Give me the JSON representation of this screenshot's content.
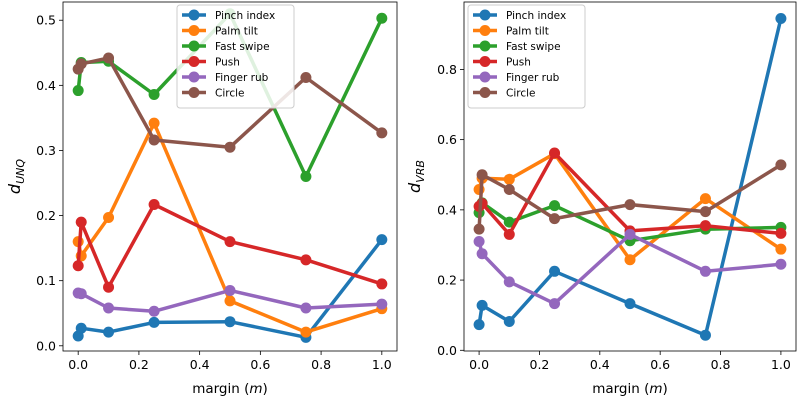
{
  "chart_data": [
    {
      "type": "line",
      "ylabel": "d_UNQ",
      "ylabel_main": "d",
      "ylabel_sub": "UNQ",
      "xlabel": "margin (m)",
      "xlabel_prefix": "margin (",
      "xlabel_var": "m",
      "xlabel_suffix": ")",
      "xlim": [
        -0.05,
        1.05
      ],
      "ylim": [
        -0.008,
        0.528
      ],
      "xticks": [
        0.0,
        0.2,
        0.4,
        0.6,
        0.8,
        1.0
      ],
      "xtick_labels": [
        "0.0",
        "0.2",
        "0.4",
        "0.6",
        "0.8",
        "1.0"
      ],
      "yticks": [
        0.0,
        0.1,
        0.2,
        0.3,
        0.4,
        0.5
      ],
      "ytick_labels": [
        "0.0",
        "0.1",
        "0.2",
        "0.3",
        "0.4",
        "0.5"
      ],
      "legend_position": "top-center",
      "x": [
        0.0,
        0.01,
        0.1,
        0.25,
        0.5,
        0.75,
        1.0
      ],
      "series": [
        {
          "name": "Pinch index",
          "color": "#1f77b4",
          "values": [
            0.015,
            0.027,
            0.021,
            0.036,
            0.037,
            0.013,
            0.163
          ]
        },
        {
          "name": "Palm tilt",
          "color": "#ff7f0e",
          "values": [
            0.16,
            0.138,
            0.197,
            0.342,
            0.069,
            0.021,
            0.057
          ]
        },
        {
          "name": "Fast swipe",
          "color": "#2ca02c",
          "values": [
            0.392,
            0.435,
            0.437,
            0.386,
            0.51,
            0.26,
            0.503
          ]
        },
        {
          "name": "Push",
          "color": "#d62728",
          "values": [
            0.123,
            0.19,
            0.09,
            0.217,
            0.16,
            0.132,
            0.095
          ]
        },
        {
          "name": "Finger rub",
          "color": "#9467bd",
          "values": [
            0.081,
            0.08,
            0.058,
            0.053,
            0.085,
            0.058,
            0.064
          ]
        },
        {
          "name": "Circle",
          "color": "#8c564b",
          "values": [
            0.425,
            0.433,
            0.442,
            0.316,
            0.305,
            0.412,
            0.327
          ]
        }
      ]
    },
    {
      "type": "line",
      "ylabel": "d_VRB",
      "ylabel_main": "d",
      "ylabel_sub": "VRB",
      "xlabel": "margin (m)",
      "xlabel_prefix": "margin (",
      "xlabel_var": "m",
      "xlabel_suffix": ")",
      "xlim": [
        -0.05,
        1.05
      ],
      "ylim": [
        -0.002,
        0.992
      ],
      "xticks": [
        0.0,
        0.2,
        0.4,
        0.6,
        0.8,
        1.0
      ],
      "xtick_labels": [
        "0.0",
        "0.2",
        "0.4",
        "0.6",
        "0.8",
        "1.0"
      ],
      "yticks": [
        0.0,
        0.2,
        0.4,
        0.6,
        0.8
      ],
      "ytick_labels": [
        "0.0",
        "0.2",
        "0.4",
        "0.6",
        "0.8"
      ],
      "legend_position": "top-left",
      "x": [
        0.0,
        0.01,
        0.1,
        0.25,
        0.5,
        0.75,
        1.0
      ],
      "series": [
        {
          "name": "Pinch index",
          "color": "#1f77b4",
          "values": [
            0.073,
            0.128,
            0.082,
            0.225,
            0.133,
            0.043,
            0.945
          ]
        },
        {
          "name": "Palm tilt",
          "color": "#ff7f0e",
          "values": [
            0.458,
            0.49,
            0.487,
            0.56,
            0.258,
            0.432,
            0.288
          ]
        },
        {
          "name": "Fast swipe",
          "color": "#2ca02c",
          "values": [
            0.392,
            0.42,
            0.365,
            0.412,
            0.312,
            0.345,
            0.35
          ]
        },
        {
          "name": "Push",
          "color": "#d62728",
          "values": [
            0.41,
            0.418,
            0.33,
            0.562,
            0.34,
            0.355,
            0.333
          ]
        },
        {
          "name": "Finger rub",
          "color": "#9467bd",
          "values": [
            0.31,
            0.275,
            0.195,
            0.133,
            0.33,
            0.225,
            0.245
          ]
        },
        {
          "name": "Circle",
          "color": "#8c564b",
          "values": [
            0.345,
            0.5,
            0.458,
            0.375,
            0.415,
            0.395,
            0.528
          ]
        }
      ]
    }
  ]
}
